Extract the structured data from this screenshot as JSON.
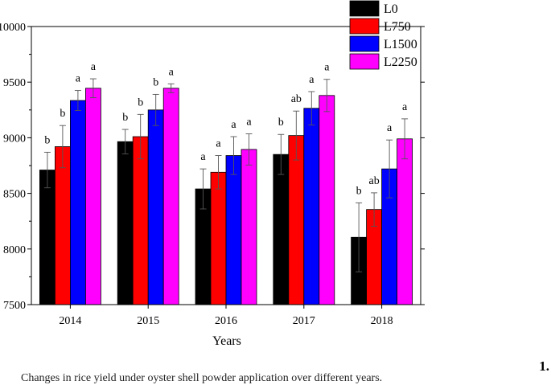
{
  "chart_data": {
    "type": "bar",
    "title": "",
    "xlabel": "Years",
    "ylabel": "",
    "categories": [
      "2014",
      "2015",
      "2016",
      "2017",
      "2018"
    ],
    "ylim": [
      7500,
      10000
    ],
    "yticks": [
      "7500",
      "8000",
      "8500",
      "9000",
      "9500",
      "10000"
    ],
    "legend_position": "top-right",
    "series": [
      {
        "name": "L0",
        "color": "#000000",
        "values": [
          8710,
          8965,
          8540,
          8850,
          8105
        ],
        "errors": [
          160,
          110,
          180,
          180,
          310
        ],
        "letters": [
          "b",
          "b",
          "a",
          "b",
          "b"
        ]
      },
      {
        "name": "L750",
        "color": "#ff0000",
        "values": [
          8920,
          9010,
          8690,
          9020,
          8355
        ],
        "errors": [
          190,
          200,
          150,
          220,
          150
        ],
        "letters": [
          "b",
          "b",
          "a",
          "ab",
          "ab"
        ]
      },
      {
        "name": "L1500",
        "color": "#0000ff",
        "values": [
          9335,
          9250,
          8840,
          9265,
          8720
        ],
        "errors": [
          90,
          140,
          170,
          150,
          260
        ],
        "letters": [
          "a",
          "b",
          "a",
          "a",
          "a"
        ]
      },
      {
        "name": "L2250",
        "color": "#ff00ff",
        "values": [
          9445,
          9445,
          8895,
          9380,
          8990
        ],
        "errors": [
          85,
          40,
          140,
          145,
          180
        ],
        "letters": [
          "a",
          "a",
          "a",
          "a",
          "a"
        ]
      }
    ]
  },
  "figure": {
    "number": "1.",
    "caption": "Changes in rice yield under oyster shell powder application over different years."
  }
}
